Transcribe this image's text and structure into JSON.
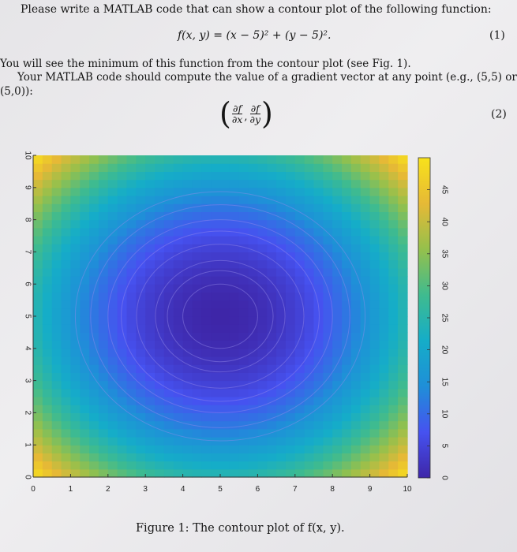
{
  "text": {
    "intro": "Please write a MATLAB code that can show a contour plot of the following function:",
    "eq1": "f(x, y) = (x − 5)² + (y − 5)².",
    "eq1_number": "(1)",
    "para1": "You will see the minimum of this function from the contour plot (see Fig. 1).",
    "para2": "Your MATLAB code should compute the value of a gradient vector at any point (e.g., (5,5) or",
    "para3": "(5,0)):",
    "grad_num1": "∂f",
    "grad_den1": "∂x",
    "grad_num2": "∂f",
    "grad_den2": "∂y",
    "eq2_number": "(2)",
    "caption": "Figure 1: The contour plot of f(x, y)."
  },
  "chart_data": {
    "type": "heatmap",
    "function": "f(x, y) = (x - 5)^2 + (y - 5)^2",
    "center": [
      5,
      5
    ],
    "xlim": [
      0,
      10
    ],
    "ylim": [
      0,
      10
    ],
    "x_ticks": [
      0,
      1,
      2,
      3,
      4,
      5,
      6,
      7,
      8,
      9,
      10
    ],
    "y_ticks": [
      0,
      1,
      2,
      3,
      4,
      5,
      6,
      7,
      8,
      9,
      10
    ],
    "colorbar": {
      "range": [
        0,
        50
      ],
      "ticks": [
        0,
        5,
        10,
        15,
        20,
        25,
        30,
        35,
        40,
        45
      ],
      "colormap": "parula",
      "stops": [
        "#3e26a8",
        "#4652f0",
        "#1f8fd8",
        "#15adc8",
        "#3fbb8f",
        "#95c04c",
        "#e6b936",
        "#f8e21b"
      ]
    },
    "contour_levels": [
      1,
      2,
      3,
      5,
      7,
      9,
      12,
      15
    ]
  }
}
